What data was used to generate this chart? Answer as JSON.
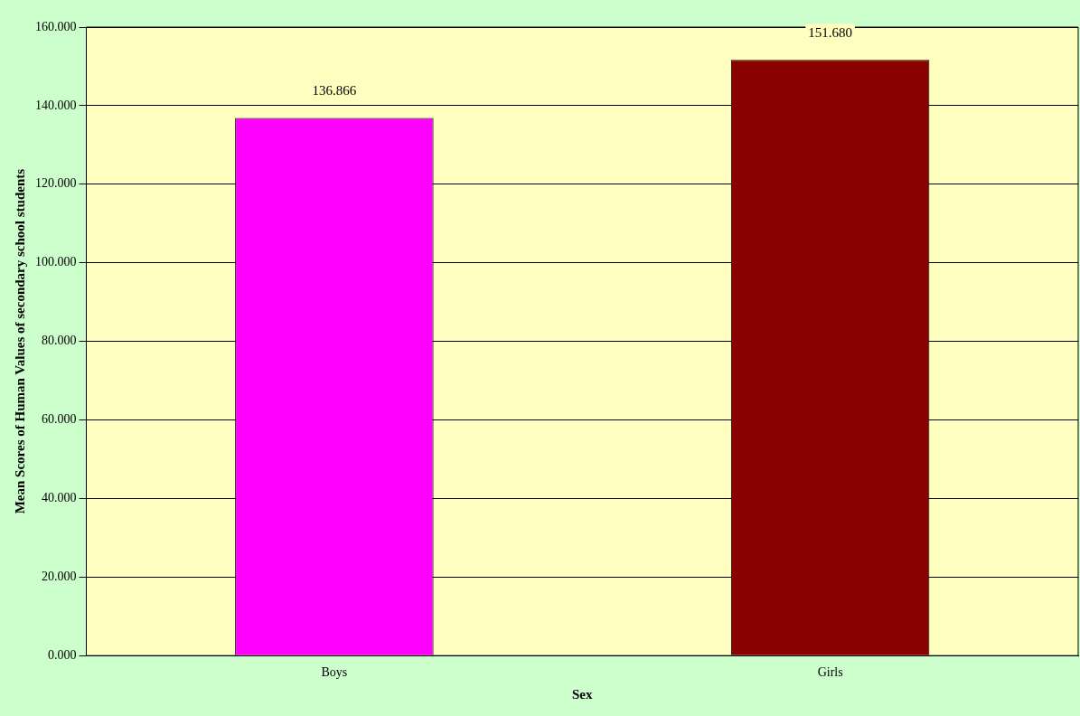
{
  "chart_data": {
    "type": "bar",
    "xlabel": "Sex",
    "ylabel": "Mean Scores of Human Values of secondary school students",
    "categories": [
      "Boys",
      "Girls"
    ],
    "values": [
      136.866,
      151.68
    ],
    "colors": [
      "#ff00ff",
      "#8b0000"
    ],
    "value_labels": [
      "136.866",
      "151.680"
    ],
    "ylim": [
      0,
      160
    ],
    "yticks": [
      {
        "value": 0,
        "label": "0.000"
      },
      {
        "value": 20,
        "label": "20.000"
      },
      {
        "value": 40,
        "label": "40.000"
      },
      {
        "value": 60,
        "label": "60.000"
      },
      {
        "value": 80,
        "label": "80.000"
      },
      {
        "value": 100,
        "label": "100.000"
      },
      {
        "value": 120,
        "label": "120.000"
      },
      {
        "value": 140,
        "label": "140.000"
      },
      {
        "value": 160,
        "label": "160.000"
      }
    ],
    "grid": "y",
    "legend": false
  }
}
